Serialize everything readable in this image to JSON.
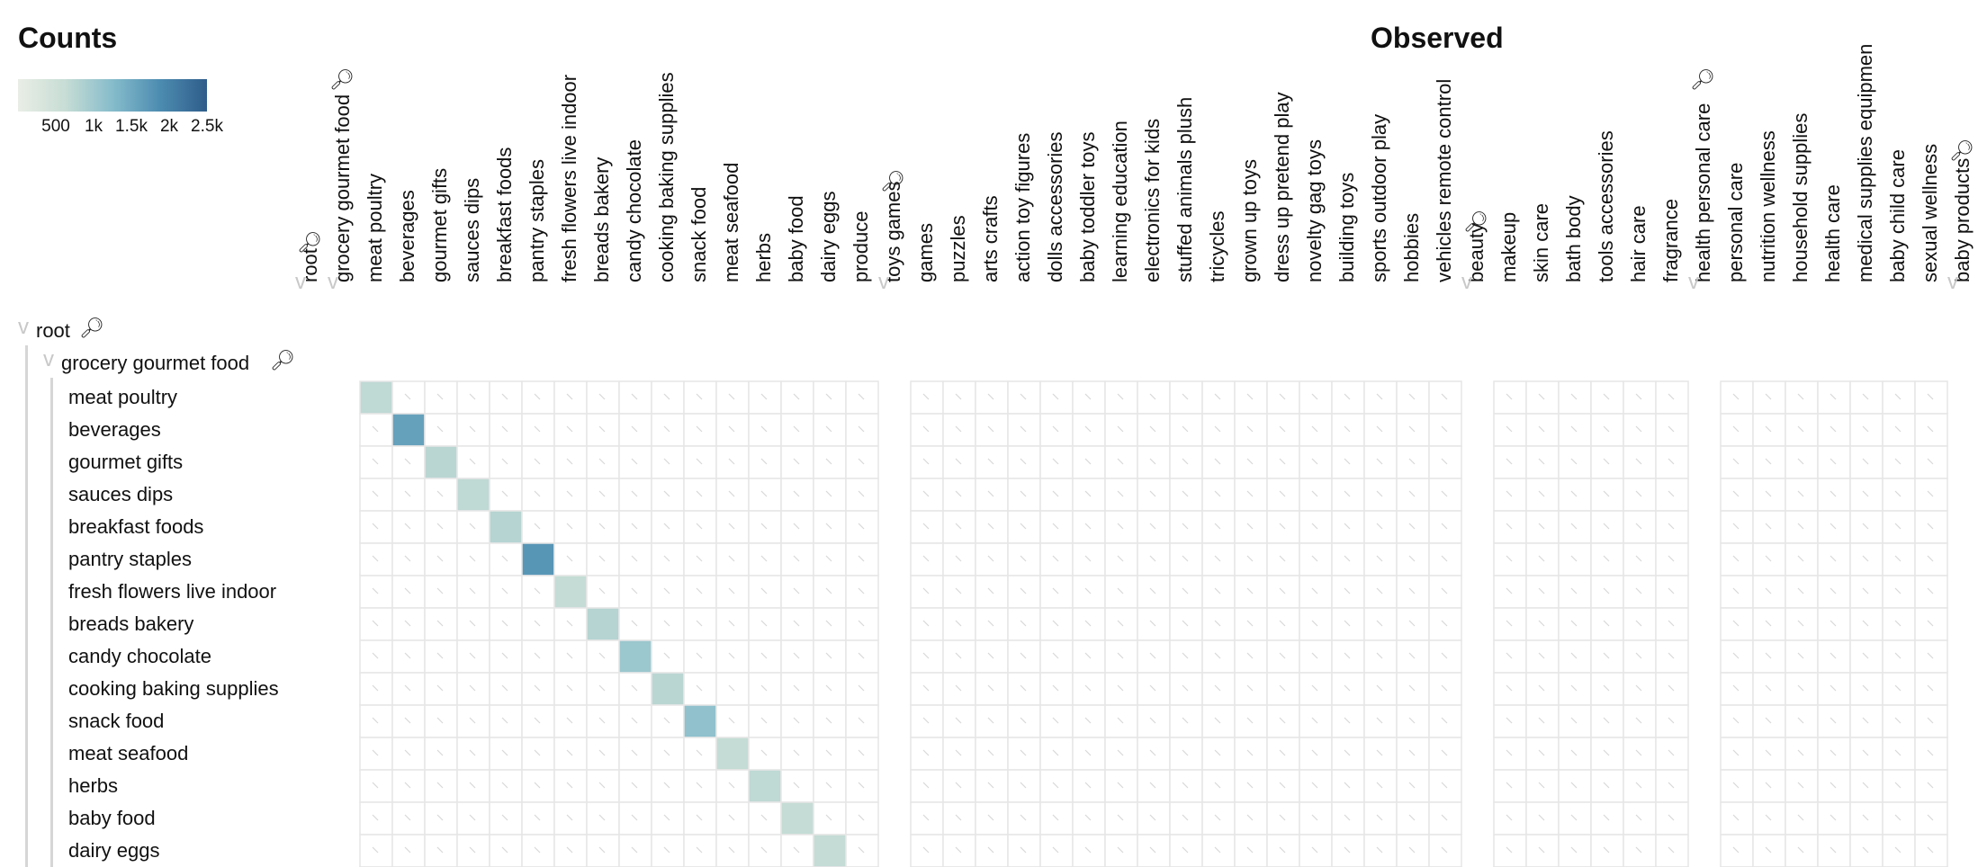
{
  "legend": {
    "title": "Counts",
    "ticks": [
      "500",
      "1k",
      "1.5k",
      "2k",
      "2.5k"
    ],
    "tick_values": [
      500,
      1000,
      1500,
      2000,
      2500
    ],
    "colors": [
      "#e9eee6",
      "#c7ddd5",
      "#86bccb",
      "#4d8cb1",
      "#2f5d8b"
    ]
  },
  "observed_title": "Observed",
  "icons": {
    "collapse": "chevron-down-icon",
    "zoom": "magnifier-icon"
  },
  "chart_data": {
    "type": "heatmap",
    "title": "Observed",
    "column_groups": [
      {
        "name": "root",
        "columns": []
      },
      {
        "name": "grocery gourmet food",
        "columns": [
          "meat poultry",
          "beverages",
          "gourmet gifts",
          "sauces dips",
          "breakfast foods",
          "pantry staples",
          "fresh flowers live indoor",
          "breads bakery",
          "candy chocolate",
          "cooking baking supplies",
          "snack food",
          "meat seafood",
          "herbs",
          "baby food",
          "dairy eggs",
          "produce"
        ]
      },
      {
        "name": "toys games",
        "columns": [
          "games",
          "puzzles",
          "arts crafts",
          "action toy figures",
          "dolls accessories",
          "baby toddler toys",
          "learning education",
          "electronics for kids",
          "stuffed animals plush",
          "tricycles",
          "grown up toys",
          "dress up pretend play",
          "novelty gag toys",
          "building toys",
          "sports outdoor play",
          "hobbies",
          "vehicles remote control"
        ]
      },
      {
        "name": "beauty",
        "columns": [
          "makeup",
          "skin care",
          "bath body",
          "tools accessories",
          "hair care",
          "fragrance"
        ]
      },
      {
        "name": "health personal care",
        "columns": [
          "personal care",
          "nutrition wellness",
          "household supplies",
          "health care",
          "medical supplies equipmen",
          "baby child care",
          "sexual wellness"
        ]
      },
      {
        "name": "baby products",
        "columns": []
      }
    ],
    "row_tree": {
      "root": "root",
      "group": "grocery gourmet food"
    },
    "rows": [
      "meat poultry",
      "beverages",
      "gourmet gifts",
      "sauces dips",
      "breakfast foods",
      "pantry staples",
      "fresh flowers live indoor",
      "breads bakery",
      "candy chocolate",
      "cooking baking supplies",
      "snack food",
      "meat seafood",
      "herbs",
      "baby food",
      "dairy eggs"
    ],
    "diagonal_counts": [
      700,
      1600,
      750,
      700,
      800,
      1750,
      650,
      800,
      1050,
      750,
      1150,
      650,
      700,
      650,
      650
    ],
    "off_diagonal": "empty",
    "color_scale": {
      "min": 0,
      "max": 2500
    }
  }
}
